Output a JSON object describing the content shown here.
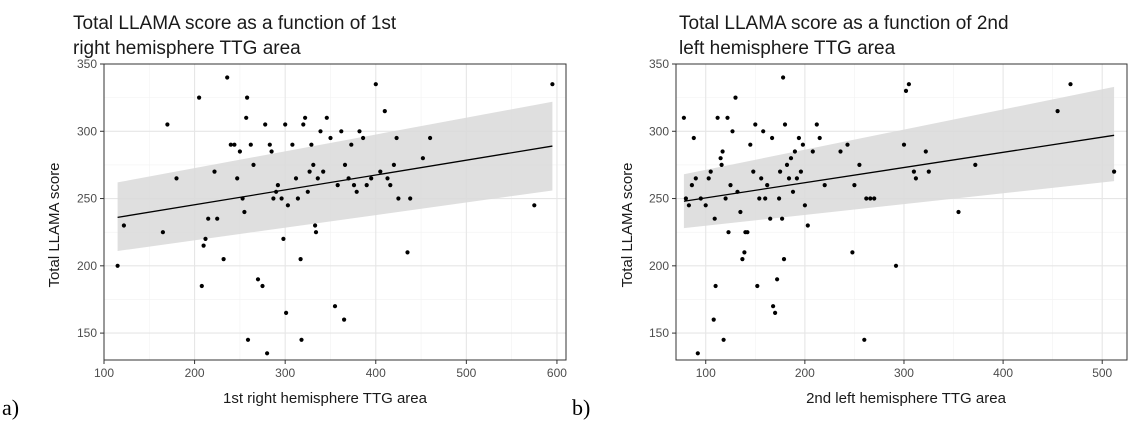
{
  "colors": {
    "panel_border": "#333333",
    "grid_major": "#e6e6e6",
    "grid_minor": "#f2f2f2",
    "ribbon": "#d9d9d9",
    "fit_line": "#000000",
    "points": "#000000"
  },
  "chart_data": [
    {
      "type": "scatter",
      "panel_label": "a)",
      "title_lines": [
        "Total LLAMA score as a function of 1st",
        "right hemisphere TTG area"
      ],
      "xlabel": "1st right hemisphere TTG area",
      "ylabel": "Total LLAMA score",
      "xlim": [
        100,
        610
      ],
      "ylim": [
        130,
        350
      ],
      "xticks": [
        100,
        200,
        300,
        400,
        500,
        600
      ],
      "yticks": [
        150,
        200,
        250,
        300,
        350
      ],
      "grid": true,
      "smooth": {
        "method": "lm",
        "x": [
          115,
          595
        ],
        "y": [
          236,
          289
        ],
        "ci_low": [
          211,
          256
        ],
        "ci_high": [
          262,
          322
        ]
      },
      "points": [
        [
          115,
          200
        ],
        [
          122,
          230
        ],
        [
          165,
          225
        ],
        [
          170,
          305
        ],
        [
          180,
          265
        ],
        [
          205,
          325
        ],
        [
          208,
          185
        ],
        [
          210,
          215
        ],
        [
          212,
          220
        ],
        [
          215,
          235
        ],
        [
          222,
          270
        ],
        [
          225,
          235
        ],
        [
          232,
          205
        ],
        [
          236,
          340
        ],
        [
          240,
          290
        ],
        [
          244,
          290
        ],
        [
          247,
          265
        ],
        [
          250,
          285
        ],
        [
          253,
          250
        ],
        [
          255,
          240
        ],
        [
          257,
          310
        ],
        [
          258,
          325
        ],
        [
          259,
          145
        ],
        [
          262,
          290
        ],
        [
          265,
          275
        ],
        [
          270,
          190
        ],
        [
          275,
          185
        ],
        [
          278,
          305
        ],
        [
          280,
          135
        ],
        [
          283,
          290
        ],
        [
          285,
          285
        ],
        [
          287,
          250
        ],
        [
          290,
          255
        ],
        [
          292,
          260
        ],
        [
          296,
          250
        ],
        [
          298,
          220
        ],
        [
          300,
          305
        ],
        [
          301,
          165
        ],
        [
          303,
          245
        ],
        [
          308,
          290
        ],
        [
          312,
          265
        ],
        [
          314,
          250
        ],
        [
          317,
          205
        ],
        [
          318,
          145
        ],
        [
          320,
          305
        ],
        [
          322,
          310
        ],
        [
          325,
          255
        ],
        [
          327,
          270
        ],
        [
          329,
          290
        ],
        [
          331,
          275
        ],
        [
          333,
          230
        ],
        [
          334,
          225
        ],
        [
          336,
          265
        ],
        [
          339,
          300
        ],
        [
          342,
          270
        ],
        [
          346,
          310
        ],
        [
          350,
          295
        ],
        [
          355,
          170
        ],
        [
          358,
          260
        ],
        [
          362,
          300
        ],
        [
          365,
          160
        ],
        [
          366,
          275
        ],
        [
          370,
          265
        ],
        [
          373,
          290
        ],
        [
          376,
          260
        ],
        [
          379,
          255
        ],
        [
          382,
          300
        ],
        [
          386,
          295
        ],
        [
          390,
          260
        ],
        [
          395,
          265
        ],
        [
          400,
          335
        ],
        [
          405,
          270
        ],
        [
          410,
          315
        ],
        [
          413,
          265
        ],
        [
          416,
          260
        ],
        [
          420,
          275
        ],
        [
          423,
          295
        ],
        [
          425,
          250
        ],
        [
          435,
          210
        ],
        [
          438,
          250
        ],
        [
          452,
          280
        ],
        [
          460,
          295
        ],
        [
          575,
          245
        ],
        [
          595,
          335
        ]
      ]
    },
    {
      "type": "scatter",
      "panel_label": "b)",
      "title_lines": [
        "Total LLAMA score as a function of 2nd",
        "left hemisphere TTG area"
      ],
      "xlabel": "2nd left hemisphere TTG area",
      "ylabel": "Total LLAMA score",
      "xlim": [
        70,
        525
      ],
      "ylim": [
        130,
        350
      ],
      "xticks": [
        100,
        200,
        300,
        400,
        500
      ],
      "yticks": [
        150,
        200,
        250,
        300,
        350
      ],
      "grid": true,
      "smooth": {
        "method": "lm",
        "x": [
          78,
          512
        ],
        "y": [
          248,
          297
        ],
        "ci_low": [
          228,
          263
        ],
        "ci_high": [
          268,
          333
        ]
      },
      "points": [
        [
          78,
          310
        ],
        [
          80,
          250
        ],
        [
          83,
          245
        ],
        [
          86,
          260
        ],
        [
          88,
          295
        ],
        [
          90,
          265
        ],
        [
          92,
          135
        ],
        [
          95,
          250
        ],
        [
          100,
          245
        ],
        [
          103,
          265
        ],
        [
          105,
          270
        ],
        [
          108,
          160
        ],
        [
          109,
          235
        ],
        [
          110,
          185
        ],
        [
          112,
          310
        ],
        [
          115,
          280
        ],
        [
          116,
          275
        ],
        [
          117,
          285
        ],
        [
          118,
          145
        ],
        [
          120,
          250
        ],
        [
          122,
          310
        ],
        [
          123,
          225
        ],
        [
          125,
          260
        ],
        [
          127,
          300
        ],
        [
          130,
          325
        ],
        [
          132,
          255
        ],
        [
          135,
          240
        ],
        [
          137,
          205
        ],
        [
          139,
          210
        ],
        [
          140,
          225
        ],
        [
          142,
          225
        ],
        [
          145,
          290
        ],
        [
          148,
          270
        ],
        [
          150,
          305
        ],
        [
          152,
          185
        ],
        [
          154,
          250
        ],
        [
          156,
          265
        ],
        [
          158,
          300
        ],
        [
          160,
          250
        ],
        [
          162,
          260
        ],
        [
          165,
          235
        ],
        [
          167,
          295
        ],
        [
          168,
          170
        ],
        [
          170,
          165
        ],
        [
          172,
          190
        ],
        [
          174,
          250
        ],
        [
          175,
          270
        ],
        [
          177,
          235
        ],
        [
          178,
          340
        ],
        [
          179,
          205
        ],
        [
          180,
          305
        ],
        [
          182,
          275
        ],
        [
          184,
          265
        ],
        [
          186,
          280
        ],
        [
          188,
          255
        ],
        [
          190,
          285
        ],
        [
          192,
          265
        ],
        [
          194,
          295
        ],
        [
          196,
          270
        ],
        [
          198,
          290
        ],
        [
          200,
          245
        ],
        [
          203,
          230
        ],
        [
          208,
          285
        ],
        [
          212,
          305
        ],
        [
          215,
          295
        ],
        [
          220,
          260
        ],
        [
          236,
          285
        ],
        [
          243,
          290
        ],
        [
          248,
          210
        ],
        [
          250,
          260
        ],
        [
          255,
          275
        ],
        [
          260,
          145
        ],
        [
          262,
          250
        ],
        [
          266,
          250
        ],
        [
          270,
          250
        ],
        [
          292,
          200
        ],
        [
          300,
          290
        ],
        [
          302,
          330
        ],
        [
          305,
          335
        ],
        [
          310,
          270
        ],
        [
          312,
          265
        ],
        [
          322,
          285
        ],
        [
          325,
          270
        ],
        [
          355,
          240
        ],
        [
          372,
          275
        ],
        [
          455,
          315
        ],
        [
          468,
          335
        ],
        [
          512,
          270
        ]
      ]
    }
  ]
}
